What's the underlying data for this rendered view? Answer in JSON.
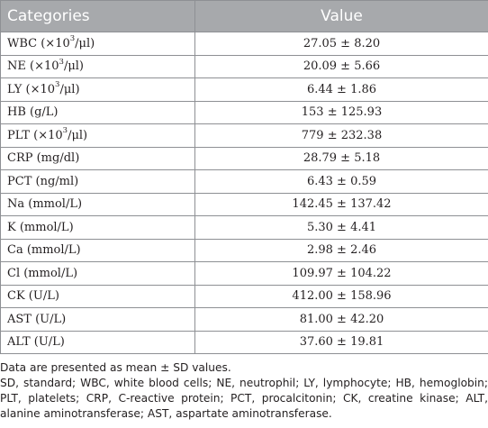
{
  "table": {
    "headers": {
      "category": "Categories",
      "value": "Value"
    },
    "rows": [
      {
        "pre": "WBC (×10",
        "sup": "3",
        "post": "/μl)",
        "value": "27.05 ± 8.20"
      },
      {
        "pre": "NE (×10",
        "sup": "3",
        "post": "/μl)",
        "value": "20.09 ± 5.66"
      },
      {
        "pre": "LY (×10",
        "sup": "3",
        "post": "/μl)",
        "value": "6.44 ± 1.86"
      },
      {
        "pre": "HB (g/L)",
        "sup": "",
        "post": "",
        "value": "153 ± 125.93"
      },
      {
        "pre": "PLT (×10",
        "sup": "3",
        "post": "/μl)",
        "value": "779 ± 232.38"
      },
      {
        "pre": "CRP (mg/dl)",
        "sup": "",
        "post": "",
        "value": "28.79 ± 5.18"
      },
      {
        "pre": "PCT (ng/ml)",
        "sup": "",
        "post": "",
        "value": "6.43 ± 0.59"
      },
      {
        "pre": "Na (mmol/L)",
        "sup": "",
        "post": "",
        "value": "142.45 ± 137.42"
      },
      {
        "pre": "K (mmol/L)",
        "sup": "",
        "post": "",
        "value": "5.30 ± 4.41"
      },
      {
        "pre": "Ca (mmol/L)",
        "sup": "",
        "post": "",
        "value": "2.98 ± 2.46"
      },
      {
        "pre": "Cl (mmol/L)",
        "sup": "",
        "post": "",
        "value": "109.97 ± 104.22"
      },
      {
        "pre": "CK (U/L)",
        "sup": "",
        "post": "",
        "value": "412.00 ± 158.96"
      },
      {
        "pre": "AST (U/L)",
        "sup": "",
        "post": "",
        "value": "81.00 ± 42.20"
      },
      {
        "pre": "ALT (U/L)",
        "sup": "",
        "post": "",
        "value": "37.60 ± 19.81"
      }
    ]
  },
  "notes": {
    "line1": "Data are presented as mean ± SD values.",
    "line2": "SD, standard; WBC, white blood cells; NE, neutrophil; LY, lymphocyte; HB, hemoglobin; PLT, platelets; CRP, C-reactive protein; PCT, procalcitonin; CK, creatine kinase; ALT, alanine aminotransferase; AST, aspartate aminotransferase."
  }
}
